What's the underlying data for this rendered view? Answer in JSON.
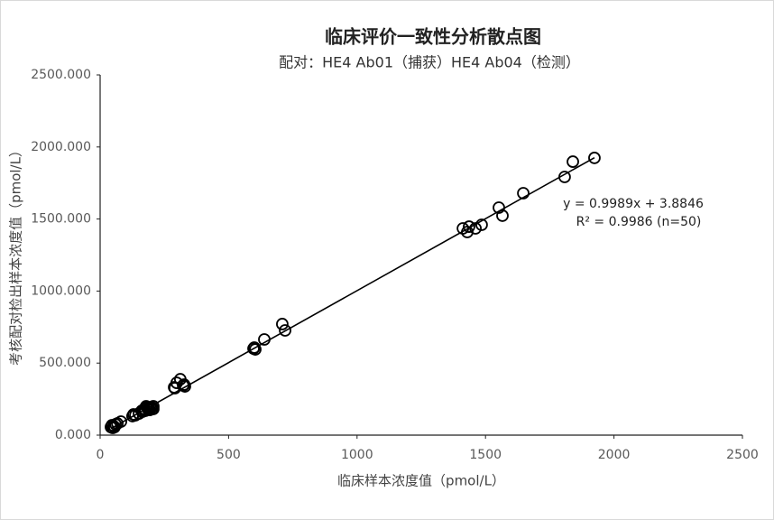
{
  "chart_data": {
    "type": "scatter",
    "title": "临床评价一致性分析散点图",
    "subtitle": "配对：HE4 Ab01（捕获）HE4 Ab04（检测）",
    "x_label": "临床样本浓度值（pmol/L）",
    "y_label": "考核配对检出样本浓度值（pmol/L）",
    "annotations": [
      "y = 0.9989x + 3.8846",
      "R² = 0.9986 (n=50)"
    ],
    "trendline": {
      "slope": 0.9989,
      "intercept": 3.8846
    },
    "color": "#000000",
    "x": [
      42,
      53,
      60,
      81,
      126,
      130,
      162,
      172,
      183,
      190,
      193,
      197,
      207,
      291,
      312,
      323,
      330,
      597,
      600,
      639,
      709,
      720,
      1412,
      1429,
      1436,
      1461,
      1485,
      1552,
      1566,
      1647,
      1808,
      1840,
      1924,
      49,
      67,
      137,
      165,
      176,
      186,
      200,
      204,
      288,
      298,
      327,
      46,
      151,
      179,
      207,
      56,
      604
    ],
    "values": [
      56,
      63,
      75,
      94,
      132,
      144,
      169,
      182,
      194,
      188,
      175,
      188,
      200,
      326,
      388,
      345,
      338,
      601,
      608,
      664,
      771,
      727,
      1435,
      1410,
      1447,
      1435,
      1460,
      1579,
      1523,
      1679,
      1792,
      1898,
      1924,
      50,
      81,
      138,
      163,
      169,
      182,
      194,
      182,
      332,
      363,
      351,
      69,
      150,
      200,
      182,
      56,
      595
    ],
    "xlim": [
      0,
      2500
    ],
    "xticks": [
      0,
      500,
      1000,
      1500,
      2000,
      2500
    ],
    "ylim": [
      0,
      2500
    ],
    "yticks": [
      {
        "value": 0,
        "label": "0.000"
      },
      {
        "value": 500,
        "label": "500.000"
      },
      {
        "value": 1000,
        "label": "1000.000"
      },
      {
        "value": 1500,
        "label": "1500.000"
      },
      {
        "value": 2000,
        "label": "2000.000"
      },
      {
        "value": 2500,
        "label": "2500.000"
      }
    ],
    "grid": false
  }
}
